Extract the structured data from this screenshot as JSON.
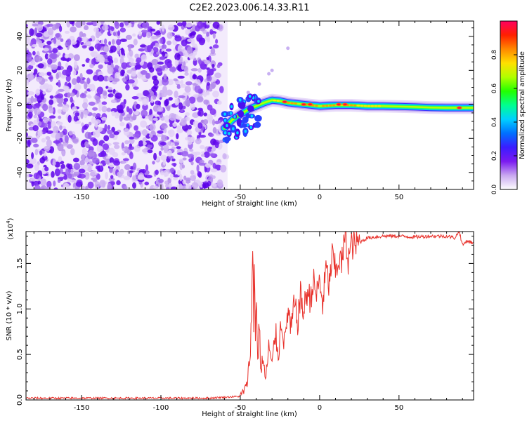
{
  "title": "C2E2.2023.006.14.33.R11",
  "chart_data": [
    {
      "type": "heatmap",
      "xlabel": "Height of straight line (km)",
      "ylabel": "Frequency (Hz)",
      "xlim": [
        -185,
        97
      ],
      "ylim": [
        -50,
        49
      ],
      "x_ticks": [
        -150,
        -100,
        -50,
        0,
        50
      ],
      "y_ticks": [
        -40,
        -20,
        0,
        20,
        40
      ],
      "colorbar": {
        "label": "Normalized spectral amplitude",
        "range": [
          0,
          1
        ],
        "ticks": [
          "0.0",
          "0.2",
          "0.4",
          "0.6",
          "0.8"
        ],
        "colors": [
          "#ffffff",
          "#c9a8f0",
          "#7b1af0",
          "#3b1cff",
          "#0070ff",
          "#00d0ff",
          "#00ff90",
          "#22ff00",
          "#b0ff00",
          "#ffe000",
          "#ff8800",
          "#ff2000",
          "#ff0060"
        ]
      },
      "noise_region_x": [
        -185,
        -58
      ],
      "signal_track": [
        {
          "x": -60,
          "y": -14,
          "amp": 0.35
        },
        {
          "x": -55,
          "y": -9,
          "amp": 0.4
        },
        {
          "x": -50,
          "y": -6,
          "amp": 0.45
        },
        {
          "x": -45,
          "y": -3,
          "amp": 0.5
        },
        {
          "x": -40,
          "y": -1,
          "amp": 0.6
        },
        {
          "x": -35,
          "y": 1,
          "amp": 0.65
        },
        {
          "x": -30,
          "y": 2.5,
          "amp": 0.7
        },
        {
          "x": -25,
          "y": 2,
          "amp": 0.8
        },
        {
          "x": -20,
          "y": 1,
          "amp": 0.85
        },
        {
          "x": -10,
          "y": 0,
          "amp": 0.95
        },
        {
          "x": 0,
          "y": -1,
          "amp": 0.9
        },
        {
          "x": 10,
          "y": -0.5,
          "amp": 0.95
        },
        {
          "x": 20,
          "y": -0.5,
          "amp": 0.9
        },
        {
          "x": 30,
          "y": -1,
          "amp": 0.75
        },
        {
          "x": 40,
          "y": -1,
          "amp": 0.7
        },
        {
          "x": 50,
          "y": -1.2,
          "amp": 0.65
        },
        {
          "x": 60,
          "y": -1.5,
          "amp": 0.6
        },
        {
          "x": 70,
          "y": -1.8,
          "amp": 0.6
        },
        {
          "x": 80,
          "y": -2,
          "amp": 0.6
        },
        {
          "x": 88,
          "y": -2,
          "amp": 0.65
        },
        {
          "x": 97,
          "y": -2,
          "amp": 0.5
        }
      ],
      "hot_spots": [
        {
          "x": -22,
          "y": 1.5
        },
        {
          "x": -10,
          "y": 0
        },
        {
          "x": -6,
          "y": 0
        },
        {
          "x": 12,
          "y": 0
        },
        {
          "x": 16,
          "y": 0
        },
        {
          "x": 88,
          "y": -2
        }
      ]
    },
    {
      "type": "line",
      "xlabel": "Height of straight line (km)",
      "ylabel": "SNR (10 * v/v)",
      "y_multiplier_label": "(x10",
      "y_multiplier_exp": "4",
      "y_multiplier_close": ")",
      "xlim": [
        -185,
        97
      ],
      "ylim": [
        0,
        1.85
      ],
      "x_ticks": [
        -150,
        -100,
        -50,
        0,
        50
      ],
      "y_ticks": [
        "0.0",
        "0.5",
        "1.0",
        "1.5"
      ],
      "y_tick_values": [
        0,
        0.5,
        1.0,
        1.5
      ],
      "series": [
        {
          "color": "#e8302a",
          "x": [
            -185,
            -120,
            -70,
            -50,
            -46,
            -44,
            -43,
            -42,
            -41.5,
            -41,
            -40.5,
            -40,
            -39,
            -38,
            -37,
            -36,
            -34,
            -32,
            -30,
            -28,
            -26,
            -24,
            -22,
            -20,
            -18,
            -16,
            -14,
            -12,
            -10,
            -8,
            -6,
            -4,
            -2,
            0,
            2,
            4,
            6,
            8,
            10,
            12,
            14,
            16,
            18,
            20,
            24,
            30,
            40,
            50,
            60,
            70,
            80,
            85,
            88,
            90,
            93,
            97
          ],
          "y": [
            0.02,
            0.02,
            0.02,
            0.04,
            0.15,
            0.45,
            0.9,
            1.7,
            0.8,
            1.72,
            0.6,
            1.2,
            0.4,
            0.9,
            0.25,
            0.5,
            0.2,
            0.6,
            0.35,
            0.75,
            0.5,
            0.9,
            0.6,
            1.0,
            0.75,
            1.05,
            0.85,
            1.15,
            0.95,
            1.2,
            1.1,
            1.3,
            1.15,
            1.3,
            1.05,
            1.45,
            1.25,
            1.6,
            1.4,
            1.55,
            1.5,
            1.8,
            1.55,
            1.7,
            1.72,
            1.78,
            1.8,
            1.8,
            1.79,
            1.8,
            1.8,
            1.78,
            1.85,
            1.7,
            1.75,
            1.72
          ]
        }
      ]
    }
  ]
}
